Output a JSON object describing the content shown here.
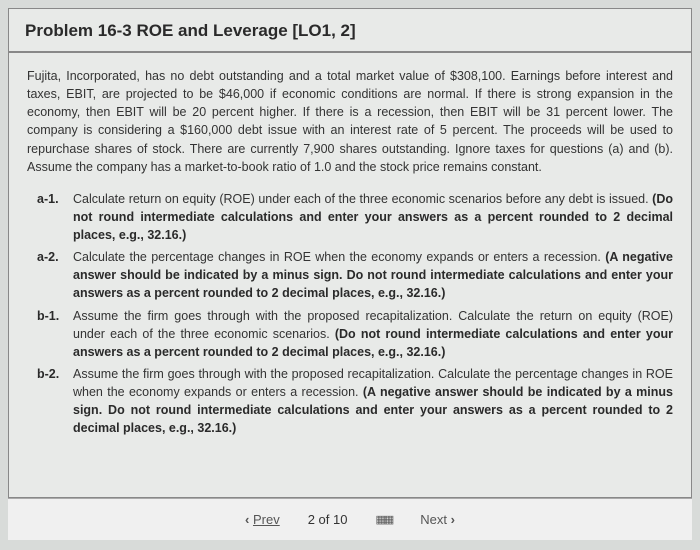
{
  "header": {
    "title": "Problem 16-3 ROE and Leverage [LO1, 2]"
  },
  "intro": "Fujita, Incorporated, has no debt outstanding and a total market value of $308,100. Earnings before interest and taxes, EBIT, are projected to be $46,000 if economic conditions are normal. If there is strong expansion in the economy, then EBIT will be 20 percent higher. If there is a recession, then EBIT will be 31 percent lower. The company is considering a $160,000 debt issue with an interest rate of 5 percent. The proceeds will be used to repurchase shares of stock. There are currently 7,900 shares outstanding. Ignore taxes for questions (a) and (b). Assume the company has a market-to-book ratio of 1.0 and the stock price remains constant.",
  "questions": {
    "a1": {
      "label": "a-1.",
      "text": "Calculate return on equity (ROE) under each of the three economic scenarios before any debt is issued. ",
      "emphasis": "(Do not round intermediate calculations and enter your answers as a percent rounded to 2 decimal places, e.g., 32.16.)"
    },
    "a2": {
      "label": "a-2.",
      "text": "Calculate the percentage changes in ROE when the economy expands or enters a recession. ",
      "emphasis": "(A negative answer should be indicated by a minus sign. Do not round intermediate calculations and enter your answers as a percent rounded to 2 decimal places, e.g., 32.16.)"
    },
    "b1": {
      "label": "b-1.",
      "text": "Assume the firm goes through with the proposed recapitalization. Calculate the return on equity (ROE) under each of the three economic scenarios. ",
      "emphasis": "(Do not round intermediate calculations and enter your answers as a percent rounded to 2 decimal places, e.g., 32.16.)"
    },
    "b2": {
      "label": "b-2.",
      "text": "Assume the firm goes through with the proposed recapitalization. Calculate the percentage changes in ROE when the economy expands or enters a recession. ",
      "emphasis": "(A negative answer should be indicated by a minus sign. Do not round intermediate calculations and enter your answers as a percent rounded to 2 decimal places, e.g., 32.16.)"
    }
  },
  "footer": {
    "prev": "Prev",
    "pager": "2 of 10",
    "next": "Next"
  }
}
